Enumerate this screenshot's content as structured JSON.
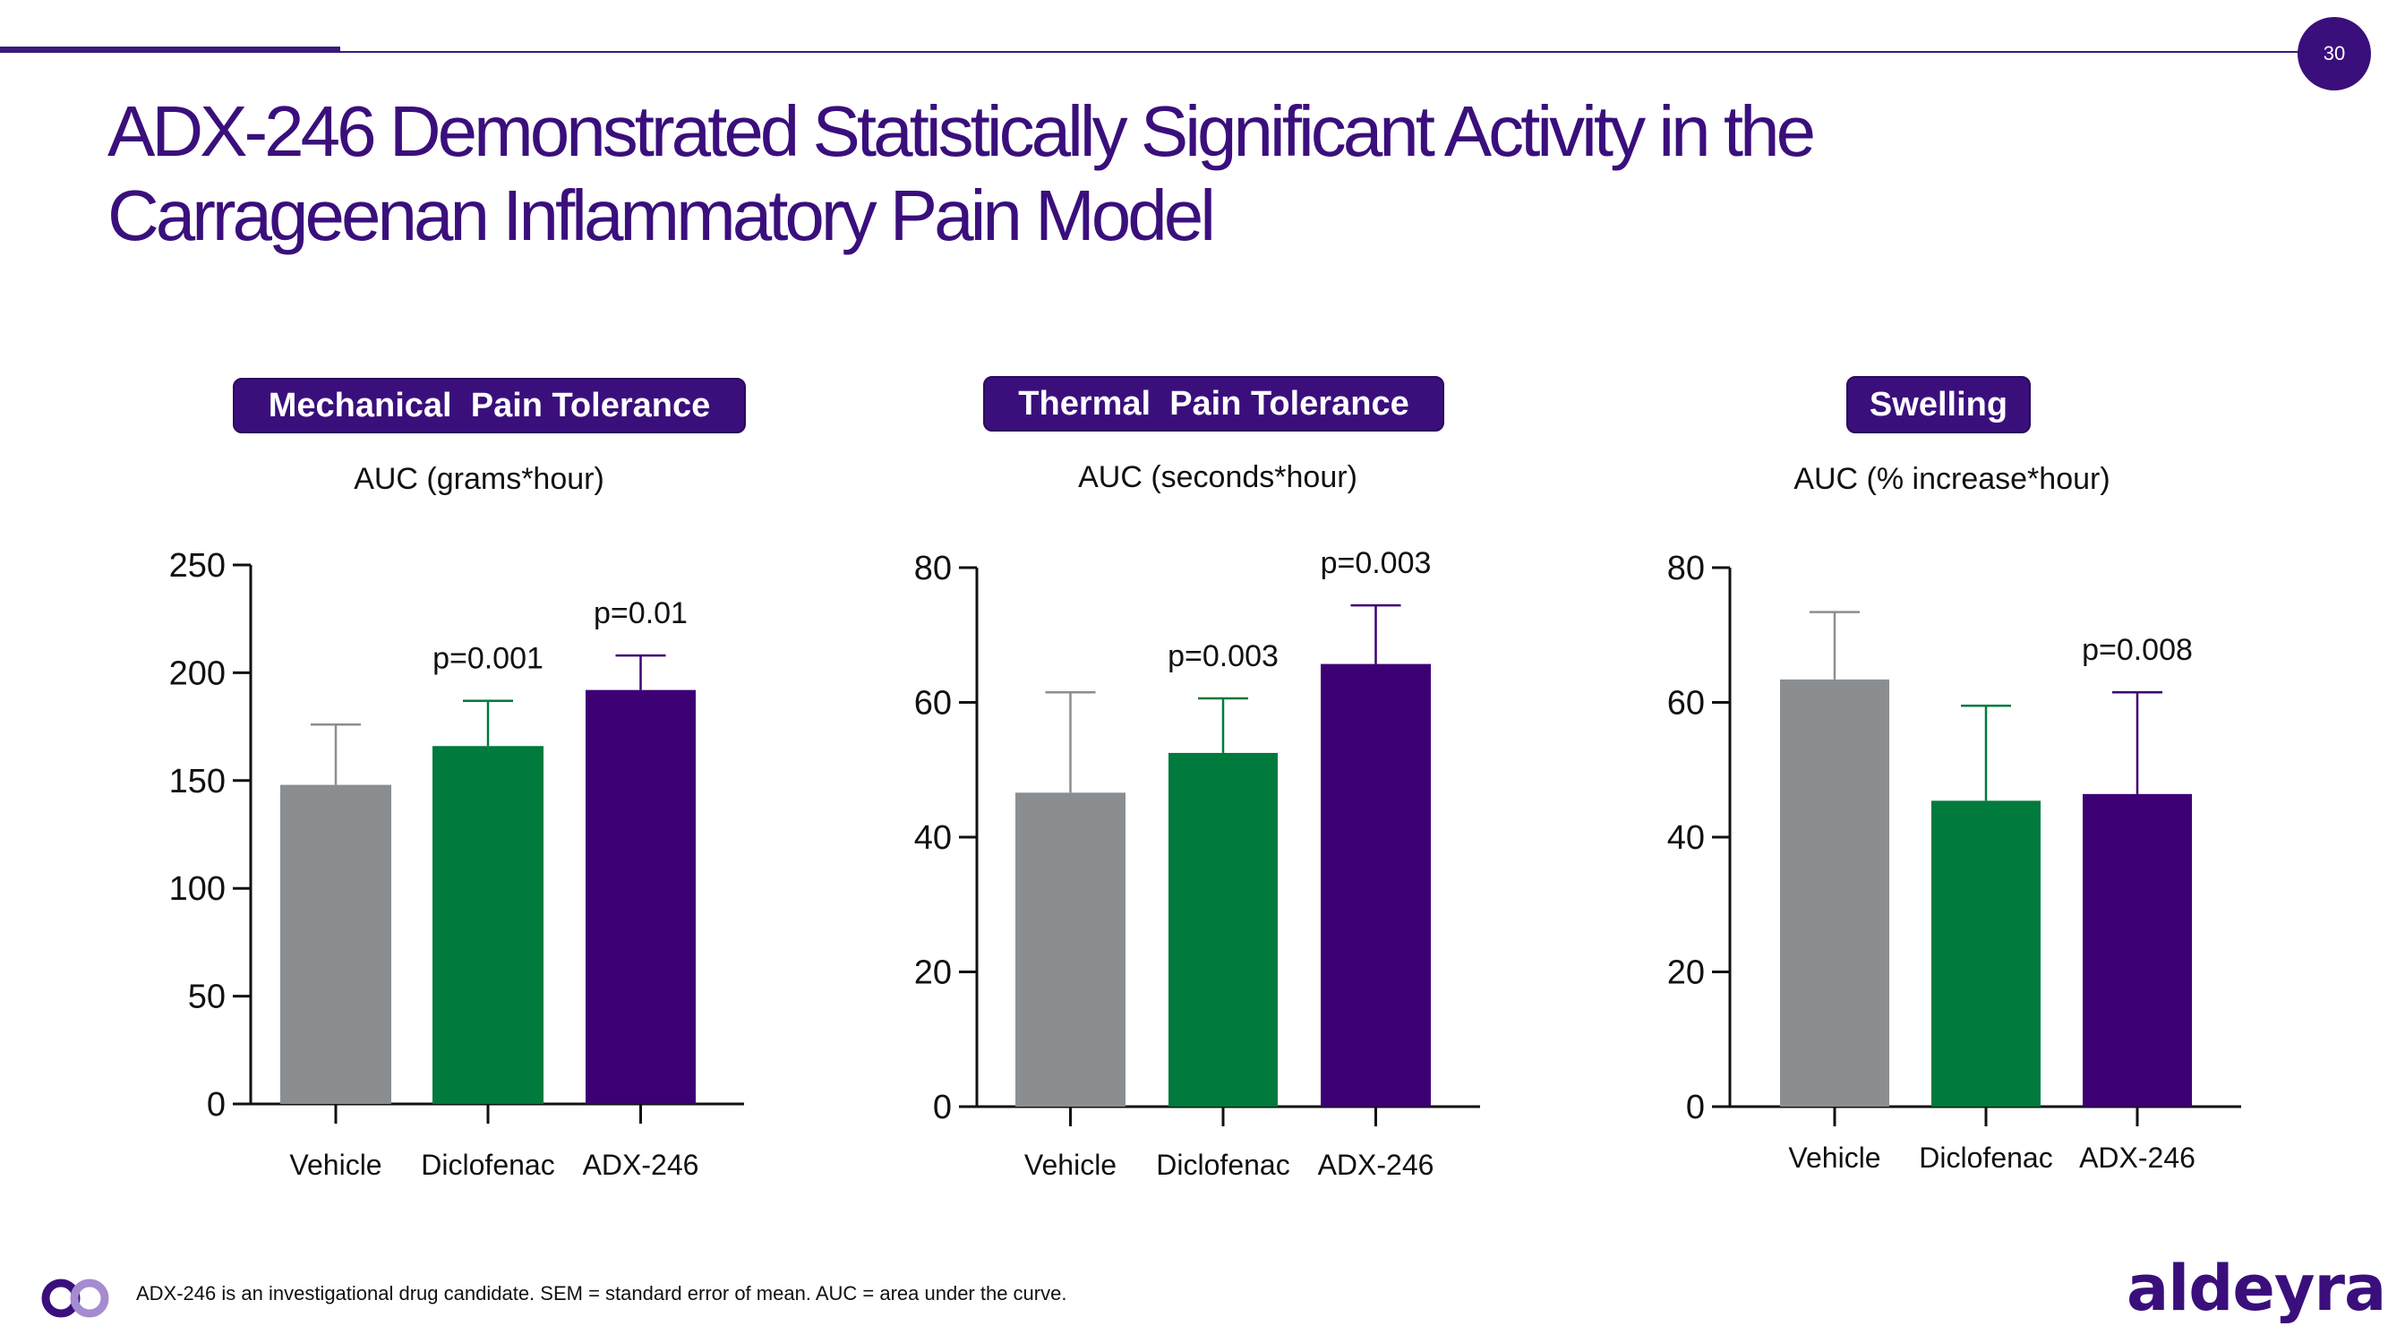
{
  "slide": {
    "page_number": "30",
    "title_line1": "ADX-246 Demonstrated Statistically Significant Activity in the",
    "title_line2": "Carrageenan Inflammatory Pain Model",
    "footnote": "ADX-246 is an investigational drug candidate. SEM = standard error of mean. AUC = area under the curve.",
    "brand": "aldeyra",
    "colors": {
      "accent": "#3a0f7c",
      "vehicle": "#8b8e90",
      "diclofenac": "#007a3d",
      "adx246": "#3c0074"
    }
  },
  "chart_data": [
    {
      "type": "bar",
      "title": "Mechanical  Pain Tolerance",
      "ylabel": "AUC (grams*hour)",
      "xlabel": "",
      "categories": [
        "Vehicle",
        "Diclofenac",
        "ADX-246"
      ],
      "values": [
        148,
        166,
        192
      ],
      "error_upper": [
        176,
        187,
        208
      ],
      "annotations": [
        "",
        "p=0.001",
        "p=0.01"
      ],
      "ylim": [
        0,
        250
      ],
      "yticks": [
        0,
        50,
        100,
        150,
        200,
        250
      ],
      "ytick_labels": [
        "0",
        "50",
        "100",
        "150",
        "200",
        "250"
      ],
      "grid": false,
      "legend": "none"
    },
    {
      "type": "bar",
      "title": "Thermal  Pain Tolerance",
      "ylabel": "AUC (seconds*hour)",
      "xlabel": "",
      "categories": [
        "Vehicle",
        "Diclofenac",
        "ADX-246"
      ],
      "values": [
        46.6,
        52.5,
        65.7
      ],
      "error_upper": [
        61.5,
        60.6,
        74.4
      ],
      "annotations": [
        "",
        "p=0.003",
        "p=0.003"
      ],
      "ylim": [
        0,
        80
      ],
      "yticks": [
        0,
        20,
        40,
        60,
        80
      ],
      "ytick_labels": [
        "0",
        "20",
        "40",
        "60",
        "80"
      ],
      "grid": false,
      "legend": "none"
    },
    {
      "type": "bar",
      "title": "Swelling",
      "ylabel": "AUC (% increase*hour)",
      "xlabel": "",
      "categories": [
        "Vehicle",
        "Diclofenac",
        "ADX-246"
      ],
      "values": [
        63.4,
        45.4,
        46.4
      ],
      "error_upper": [
        73.4,
        59.5,
        61.5
      ],
      "annotations": [
        "",
        "",
        "p=0.008"
      ],
      "ylim": [
        0,
        80
      ],
      "yticks": [
        0,
        20,
        40,
        60,
        80
      ],
      "ytick_labels": [
        "0",
        "20",
        "40",
        "60",
        "80"
      ],
      "grid": false,
      "legend": "none"
    }
  ]
}
